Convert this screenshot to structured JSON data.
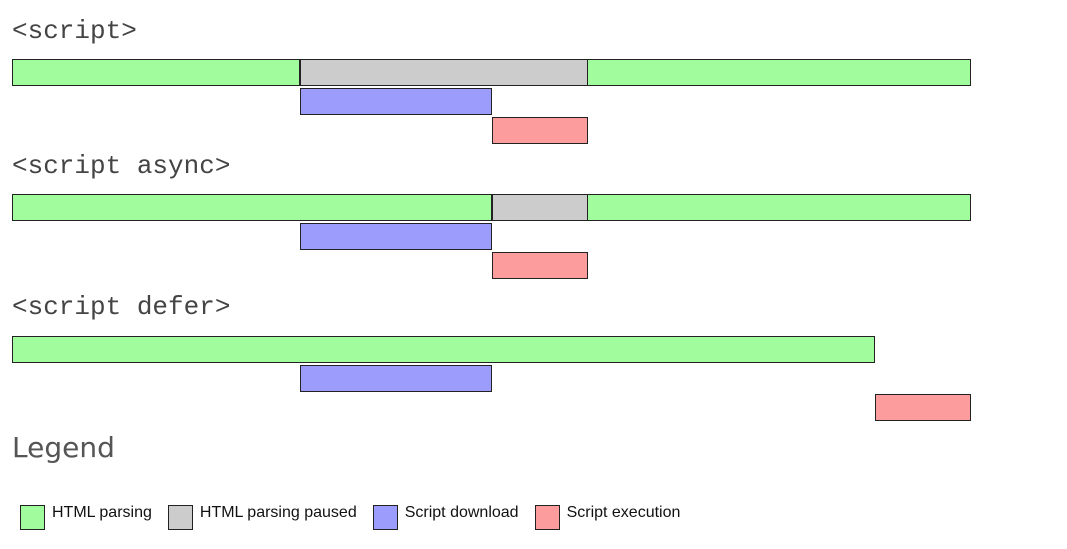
{
  "colors": {
    "parsing": "#a0fc9c",
    "paused": "#cccccc",
    "download": "#9c9cfc",
    "execution": "#fc9c9c"
  },
  "timeline": {
    "start": 0,
    "end": 100
  },
  "sections": [
    {
      "title": "<script>",
      "lanes": [
        [
          {
            "kind": "parsing",
            "start": 0,
            "end": 30
          },
          {
            "kind": "paused",
            "start": 30,
            "end": 60
          },
          {
            "kind": "parsing",
            "start": 60,
            "end": 100
          }
        ],
        [
          {
            "kind": "download",
            "start": 30,
            "end": 50
          }
        ],
        [
          {
            "kind": "execution",
            "start": 50,
            "end": 60
          }
        ]
      ]
    },
    {
      "title": "<script async>",
      "lanes": [
        [
          {
            "kind": "parsing",
            "start": 0,
            "end": 50
          },
          {
            "kind": "paused",
            "start": 50,
            "end": 60
          },
          {
            "kind": "parsing",
            "start": 60,
            "end": 100
          }
        ],
        [
          {
            "kind": "download",
            "start": 30,
            "end": 50
          }
        ],
        [
          {
            "kind": "execution",
            "start": 50,
            "end": 60
          }
        ]
      ]
    },
    {
      "title": "<script defer>",
      "lanes": [
        [
          {
            "kind": "parsing",
            "start": 0,
            "end": 90
          }
        ],
        [
          {
            "kind": "download",
            "start": 30,
            "end": 50
          }
        ],
        [
          {
            "kind": "execution",
            "start": 90,
            "end": 100
          }
        ]
      ]
    }
  ],
  "legend": {
    "title": "Legend",
    "items": [
      {
        "kind": "parsing",
        "label": "HTML parsing"
      },
      {
        "kind": "paused",
        "label": "HTML parsing paused"
      },
      {
        "kind": "download",
        "label": "Script download"
      },
      {
        "kind": "execution",
        "label": "Script execution"
      }
    ]
  }
}
